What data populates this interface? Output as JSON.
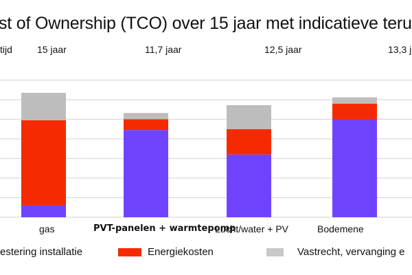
{
  "title": "st of Ownership (TCO) over 15 jaar met indicatieve terugv",
  "payback": {
    "row_label": "tijd",
    "values": [
      "15 jaar",
      "11,7 jaar",
      "12,5 jaar",
      "13,3 j"
    ]
  },
  "chart_data": {
    "type": "bar",
    "stacked": true,
    "title": "st of Ownership (TCO) over 15 jaar met indicatieve terugv",
    "categories": [
      "gas",
      "PVT-panelen + warmtepomp",
      "Lucht/water + PV",
      "Bodemene"
    ],
    "category_bold": [
      false,
      true,
      false,
      false
    ],
    "series": [
      {
        "name": "estering installatie",
        "color": "#7044FF",
        "values": [
          0.6,
          4.45,
          3.2,
          5.0
        ]
      },
      {
        "name": "Energiekosten",
        "color": "#F52A00",
        "values": [
          4.35,
          0.55,
          1.3,
          0.8
        ]
      },
      {
        "name": "Vastrecht, vervanging e",
        "color": "#BDBDBD",
        "values": [
          1.4,
          0.32,
          1.22,
          0.32
        ]
      }
    ],
    "ylim": [
      0,
      7
    ],
    "gridlines": true,
    "y_tick_labels_visible": false,
    "legend_position": "bottom"
  }
}
